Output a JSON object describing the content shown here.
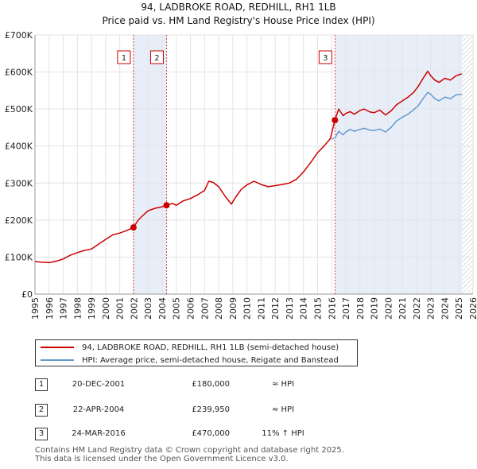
{
  "chart_data": {
    "type": "line",
    "title": "94, LADBROKE ROAD, REDHILL, RH1 1LB",
    "subtitle": "Price paid vs. HM Land Registry's House Price Index (HPI)",
    "xlim": [
      1995,
      2026
    ],
    "ylim": [
      0,
      700000
    ],
    "y_ticks": [
      0,
      100000,
      200000,
      300000,
      400000,
      500000,
      600000,
      700000
    ],
    "y_tick_labels": [
      "£0",
      "£100K",
      "£200K",
      "£300K",
      "£400K",
      "£500K",
      "£600K",
      "£700K"
    ],
    "x_ticks": [
      1995,
      1996,
      1997,
      1998,
      1999,
      2000,
      2001,
      2002,
      2003,
      2004,
      2005,
      2006,
      2007,
      2008,
      2009,
      2010,
      2011,
      2012,
      2013,
      2014,
      2015,
      2016,
      2017,
      2018,
      2019,
      2020,
      2021,
      2022,
      2023,
      2024,
      2025,
      2026
    ],
    "grid": true,
    "data_end": 2025.25,
    "shaded_ranges": [
      [
        2001.97,
        2004.31
      ]
    ],
    "hpi_start": 2016.0,
    "series": [
      {
        "name": "94, LADBROKE ROAD, REDHILL, RH1 1LB (semi-detached house)",
        "color": "#cc0000",
        "x": [
          1995.0,
          1995.5,
          1996.0,
          1996.5,
          1997.0,
          1997.5,
          1998.0,
          1998.5,
          1999.0,
          1999.5,
          2000.0,
          2000.5,
          2001.0,
          2001.5,
          2001.97,
          2002.3,
          2002.7,
          2003.0,
          2003.5,
          2004.0,
          2004.31,
          2004.7,
          2005.0,
          2005.5,
          2006.0,
          2006.5,
          2007.0,
          2007.3,
          2007.6,
          2008.0,
          2008.5,
          2008.9,
          2009.2,
          2009.6,
          2010.0,
          2010.5,
          2011.0,
          2011.5,
          2012.0,
          2012.5,
          2013.0,
          2013.5,
          2014.0,
          2014.5,
          2015.0,
          2015.5,
          2015.9,
          2016.23,
          2016.5,
          2016.8,
          2017.0,
          2017.3,
          2017.6,
          2018.0,
          2018.3,
          2018.7,
          2019.0,
          2019.4,
          2019.8,
          2020.2,
          2020.6,
          2021.0,
          2021.4,
          2021.8,
          2022.1,
          2022.5,
          2022.8,
          2023.0,
          2023.3,
          2023.6,
          2024.0,
          2024.4,
          2024.8,
          2025.2
        ],
        "values": [
          88000,
          86000,
          85000,
          89000,
          95000,
          105000,
          112000,
          118000,
          122000,
          135000,
          148000,
          160000,
          165000,
          172000,
          180000,
          200000,
          215000,
          225000,
          232000,
          236000,
          239950,
          245000,
          240000,
          252000,
          258000,
          268000,
          280000,
          305000,
          302000,
          290000,
          262000,
          243000,
          262000,
          283000,
          295000,
          305000,
          296000,
          290000,
          293000,
          296000,
          300000,
          310000,
          330000,
          355000,
          382000,
          402000,
          420000,
          470000,
          500000,
          482000,
          488000,
          493000,
          486000,
          496000,
          500000,
          492000,
          490000,
          497000,
          484000,
          495000,
          512000,
          522000,
          532000,
          545000,
          560000,
          585000,
          602000,
          590000,
          578000,
          572000,
          583000,
          578000,
          590000,
          595000
        ]
      },
      {
        "name": "HPI: Average price, semi-detached house, Reigate and Banstead",
        "color": "#6699cc",
        "x": [
          2016.0,
          2016.23,
          2016.5,
          2016.8,
          2017.0,
          2017.3,
          2017.6,
          2018.0,
          2018.3,
          2018.7,
          2019.0,
          2019.4,
          2019.8,
          2020.2,
          2020.6,
          2021.0,
          2021.4,
          2021.8,
          2022.1,
          2022.5,
          2022.8,
          2023.0,
          2023.3,
          2023.6,
          2024.0,
          2024.4,
          2024.8,
          2025.2
        ],
        "values": [
          418000,
          422000,
          440000,
          430000,
          438000,
          445000,
          440000,
          445000,
          448000,
          443000,
          442000,
          446000,
          438000,
          450000,
          468000,
          478000,
          486000,
          498000,
          508000,
          530000,
          545000,
          540000,
          528000,
          522000,
          532000,
          528000,
          538000,
          540000
        ]
      }
    ],
    "sale_markers": [
      {
        "label": "1",
        "x": 2001.97,
        "value": 180000
      },
      {
        "label": "2",
        "x": 2004.31,
        "value": 239950
      },
      {
        "label": "3",
        "x": 2016.23,
        "value": 470000
      }
    ]
  },
  "legend": {
    "line1_label": "94, LADBROKE ROAD, REDHILL, RH1 1LB (semi-detached house)",
    "line2_label": "HPI: Average price, semi-detached house, Reigate and Banstead"
  },
  "transactions": [
    {
      "num": "1",
      "date": "20-DEC-2001",
      "price": "£180,000",
      "rel": "≈ HPI"
    },
    {
      "num": "2",
      "date": "22-APR-2004",
      "price": "£239,950",
      "rel": "≈ HPI"
    },
    {
      "num": "3",
      "date": "24-MAR-2016",
      "price": "£470,000",
      "rel": "11% ↑ HPI"
    }
  ],
  "footer": {
    "line1": "Contains HM Land Registry data © Crown copyright and database right 2025.",
    "line2": "This data is licensed under the Open Government Licence v3.0."
  }
}
